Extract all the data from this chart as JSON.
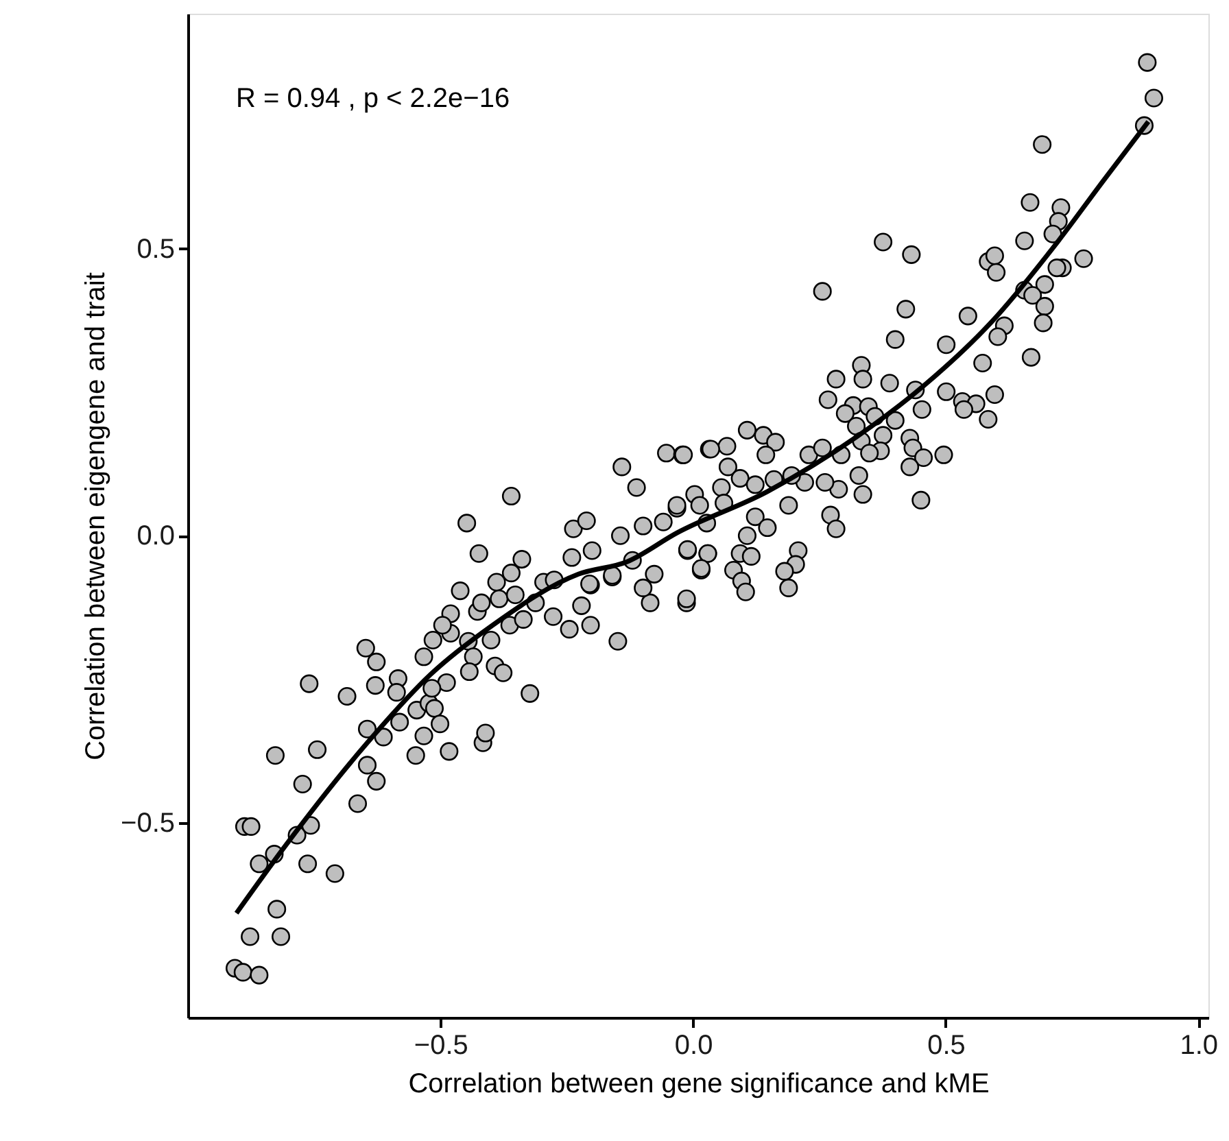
{
  "chart_data": {
    "type": "scatter",
    "xlabel": "Correlation between gene significance and kME",
    "ylabel": "Correlation between eigengene and trait",
    "annotations": [
      "R = 0.94 , p < 2.2e−16"
    ],
    "xlim": [
      -1.0,
      1.02
    ],
    "xticks": [
      {
        "value": -0.5,
        "label": "−0.5"
      },
      {
        "value": 0.0,
        "label": "0.0"
      },
      {
        "value": 0.5,
        "label": "0.5"
      },
      {
        "value": 1.0,
        "label": "1.0"
      }
    ],
    "ylim": [
      -0.84,
      0.91
    ],
    "yticks": [
      {
        "value": -0.5,
        "label": "−0.5"
      },
      {
        "value": 0.0,
        "label": "0.0"
      },
      {
        "value": 0.5,
        "label": "0.5"
      }
    ],
    "grid": false,
    "series": [
      {
        "marker": "circle",
        "color": "#bebebe",
        "x": [
          -0.907,
          -0.891,
          -0.859,
          -0.877,
          -0.816,
          -0.824,
          -0.859,
          -0.829,
          -0.888,
          -0.875,
          -0.784,
          -0.757,
          -0.763,
          -0.709,
          -0.773,
          -0.827,
          -0.744,
          -0.76,
          -0.685,
          -0.664,
          -0.645,
          -0.627,
          -0.645,
          -0.613,
          -0.648,
          -0.627,
          -0.629,
          -0.584,
          -0.587,
          -0.581,
          -0.549,
          -0.533,
          -0.547,
          -0.523,
          -0.512,
          -0.501,
          -0.483,
          -0.488,
          -0.517,
          -0.533,
          -0.515,
          -0.48,
          -0.48,
          -0.496,
          -0.461,
          -0.445,
          -0.435,
          -0.443,
          -0.416,
          -0.411,
          -0.4,
          -0.392,
          -0.376,
          -0.323,
          -0.427,
          -0.419,
          -0.389,
          -0.384,
          -0.363,
          -0.352,
          -0.336,
          -0.312,
          -0.277,
          -0.245,
          -0.221,
          -0.203,
          -0.149,
          -0.203,
          -0.013,
          -0.085,
          -0.099,
          -0.16,
          -0.448,
          -0.424,
          -0.36,
          -0.36,
          -0.339,
          -0.296,
          -0.275,
          -0.24,
          -0.237,
          -0.211,
          -0.2,
          -0.205,
          -0.16,
          -0.144,
          -0.141,
          -0.112,
          -0.099,
          -0.12,
          -0.077,
          -0.053,
          -0.021,
          0.032,
          -0.032,
          0.003,
          -0.059,
          -0.011,
          0.016,
          0.029,
          -0.013,
          0.899,
          0.912,
          0.893,
          0.691,
          0.667,
          0.728,
          0.723,
          0.712,
          0.656,
          0.376,
          0.432,
          0.584,
          0.597,
          0.6,
          0.773,
          0.731,
          0.72,
          0.256,
          0.421,
          0.544,
          0.656,
          0.696,
          0.672,
          0.696,
          0.693,
          0.616,
          0.603,
          0.501,
          0.4,
          0.573,
          0.669,
          0.597,
          0.501,
          0.533,
          0.56,
          0.536,
          0.584,
          0.333,
          0.336,
          0.283,
          0.389,
          0.44,
          0.267,
          0.317,
          0.347,
          0.453,
          0.301,
          0.36,
          0.4,
          0.323,
          0.376,
          0.429,
          0.333,
          0.435,
          0.371,
          0.349,
          0.496,
          0.456,
          0.429,
          0.229,
          0.256,
          0.293,
          0.328,
          0.336,
          0.451,
          0.288,
          0.261,
          0.221,
          0.272,
          0.283,
          0.107,
          0.139,
          0.163,
          0.144,
          0.067,
          0.035,
          -0.019,
          0.069,
          0.093,
          0.123,
          0.16,
          0.056,
          0.195,
          0.189,
          0.123,
          0.147,
          0.107,
          0.208,
          0.203,
          0.093,
          0.115,
          0.029,
          -0.011,
          0.08,
          0.016,
          0.181,
          0.013,
          -0.032,
          0.061,
          0.027,
          0.096,
          0.104,
          0.189
        ],
        "values": [
          -0.754,
          -0.761,
          -0.766,
          -0.699,
          -0.699,
          -0.651,
          -0.572,
          -0.555,
          -0.507,
          -0.507,
          -0.522,
          -0.505,
          -0.572,
          -0.589,
          -0.433,
          -0.383,
          -0.373,
          -0.258,
          -0.28,
          -0.467,
          -0.4,
          -0.428,
          -0.337,
          -0.351,
          -0.196,
          -0.22,
          -0.261,
          -0.249,
          -0.273,
          -0.325,
          -0.383,
          -0.349,
          -0.304,
          -0.292,
          -0.301,
          -0.328,
          -0.376,
          -0.256,
          -0.266,
          -0.211,
          -0.182,
          -0.17,
          -0.136,
          -0.156,
          -0.096,
          -0.184,
          -0.211,
          -0.237,
          -0.361,
          -0.344,
          -0.182,
          -0.227,
          -0.239,
          -0.275,
          -0.132,
          -0.117,
          -0.081,
          -0.11,
          -0.156,
          -0.103,
          -0.146,
          -0.117,
          -0.141,
          -0.163,
          -0.122,
          -0.156,
          -0.184,
          -0.086,
          -0.117,
          -0.117,
          -0.091,
          -0.072,
          0.022,
          -0.031,
          0.069,
          -0.065,
          -0.041,
          -0.081,
          -0.077,
          -0.038,
          0.012,
          0.026,
          -0.026,
          -0.084,
          -0.069,
          0.0,
          0.12,
          0.084,
          0.017,
          -0.043,
          -0.067,
          0.144,
          0.141,
          0.151,
          0.048,
          0.072,
          0.024,
          -0.026,
          -0.06,
          -0.031,
          -0.11,
          0.825,
          0.763,
          0.715,
          0.682,
          0.581,
          0.572,
          0.548,
          0.526,
          0.514,
          0.512,
          0.49,
          0.478,
          0.488,
          0.459,
          0.483,
          0.467,
          0.467,
          0.426,
          0.395,
          0.383,
          0.428,
          0.438,
          0.419,
          0.4,
          0.371,
          0.366,
          0.347,
          0.333,
          0.342,
          0.301,
          0.311,
          0.246,
          0.251,
          0.234,
          0.23,
          0.22,
          0.203,
          0.297,
          0.273,
          0.273,
          0.266,
          0.254,
          0.237,
          0.227,
          0.225,
          0.22,
          0.213,
          0.208,
          0.201,
          0.191,
          0.175,
          0.17,
          0.165,
          0.153,
          0.148,
          0.144,
          0.141,
          0.136,
          0.12,
          0.141,
          0.153,
          0.141,
          0.105,
          0.072,
          0.062,
          0.081,
          0.093,
          0.093,
          0.036,
          0.012,
          0.184,
          0.175,
          0.163,
          0.141,
          0.156,
          0.151,
          0.141,
          0.12,
          0.1,
          0.089,
          0.098,
          0.084,
          0.105,
          0.053,
          0.033,
          0.014,
          0.0,
          -0.026,
          -0.05,
          -0.031,
          -0.036,
          -0.031,
          -0.024,
          -0.06,
          -0.057,
          -0.062,
          0.053,
          0.053,
          0.057,
          0.022,
          -0.079,
          -0.098,
          -0.091
        ]
      },
      {
        "type": "line",
        "color": "#000000",
        "x": [
          -0.904,
          -0.805,
          -0.645,
          -0.52,
          -0.397,
          -0.227,
          -0.13,
          -0.032,
          0.147,
          0.323,
          0.456,
          0.589,
          0.723,
          0.813,
          0.901
        ],
        "values": [
          -0.658,
          -0.538,
          -0.361,
          -0.242,
          -0.156,
          -0.067,
          -0.045,
          0.005,
          0.077,
          0.172,
          0.261,
          0.371,
          0.514,
          0.62,
          0.722
        ]
      }
    ]
  }
}
